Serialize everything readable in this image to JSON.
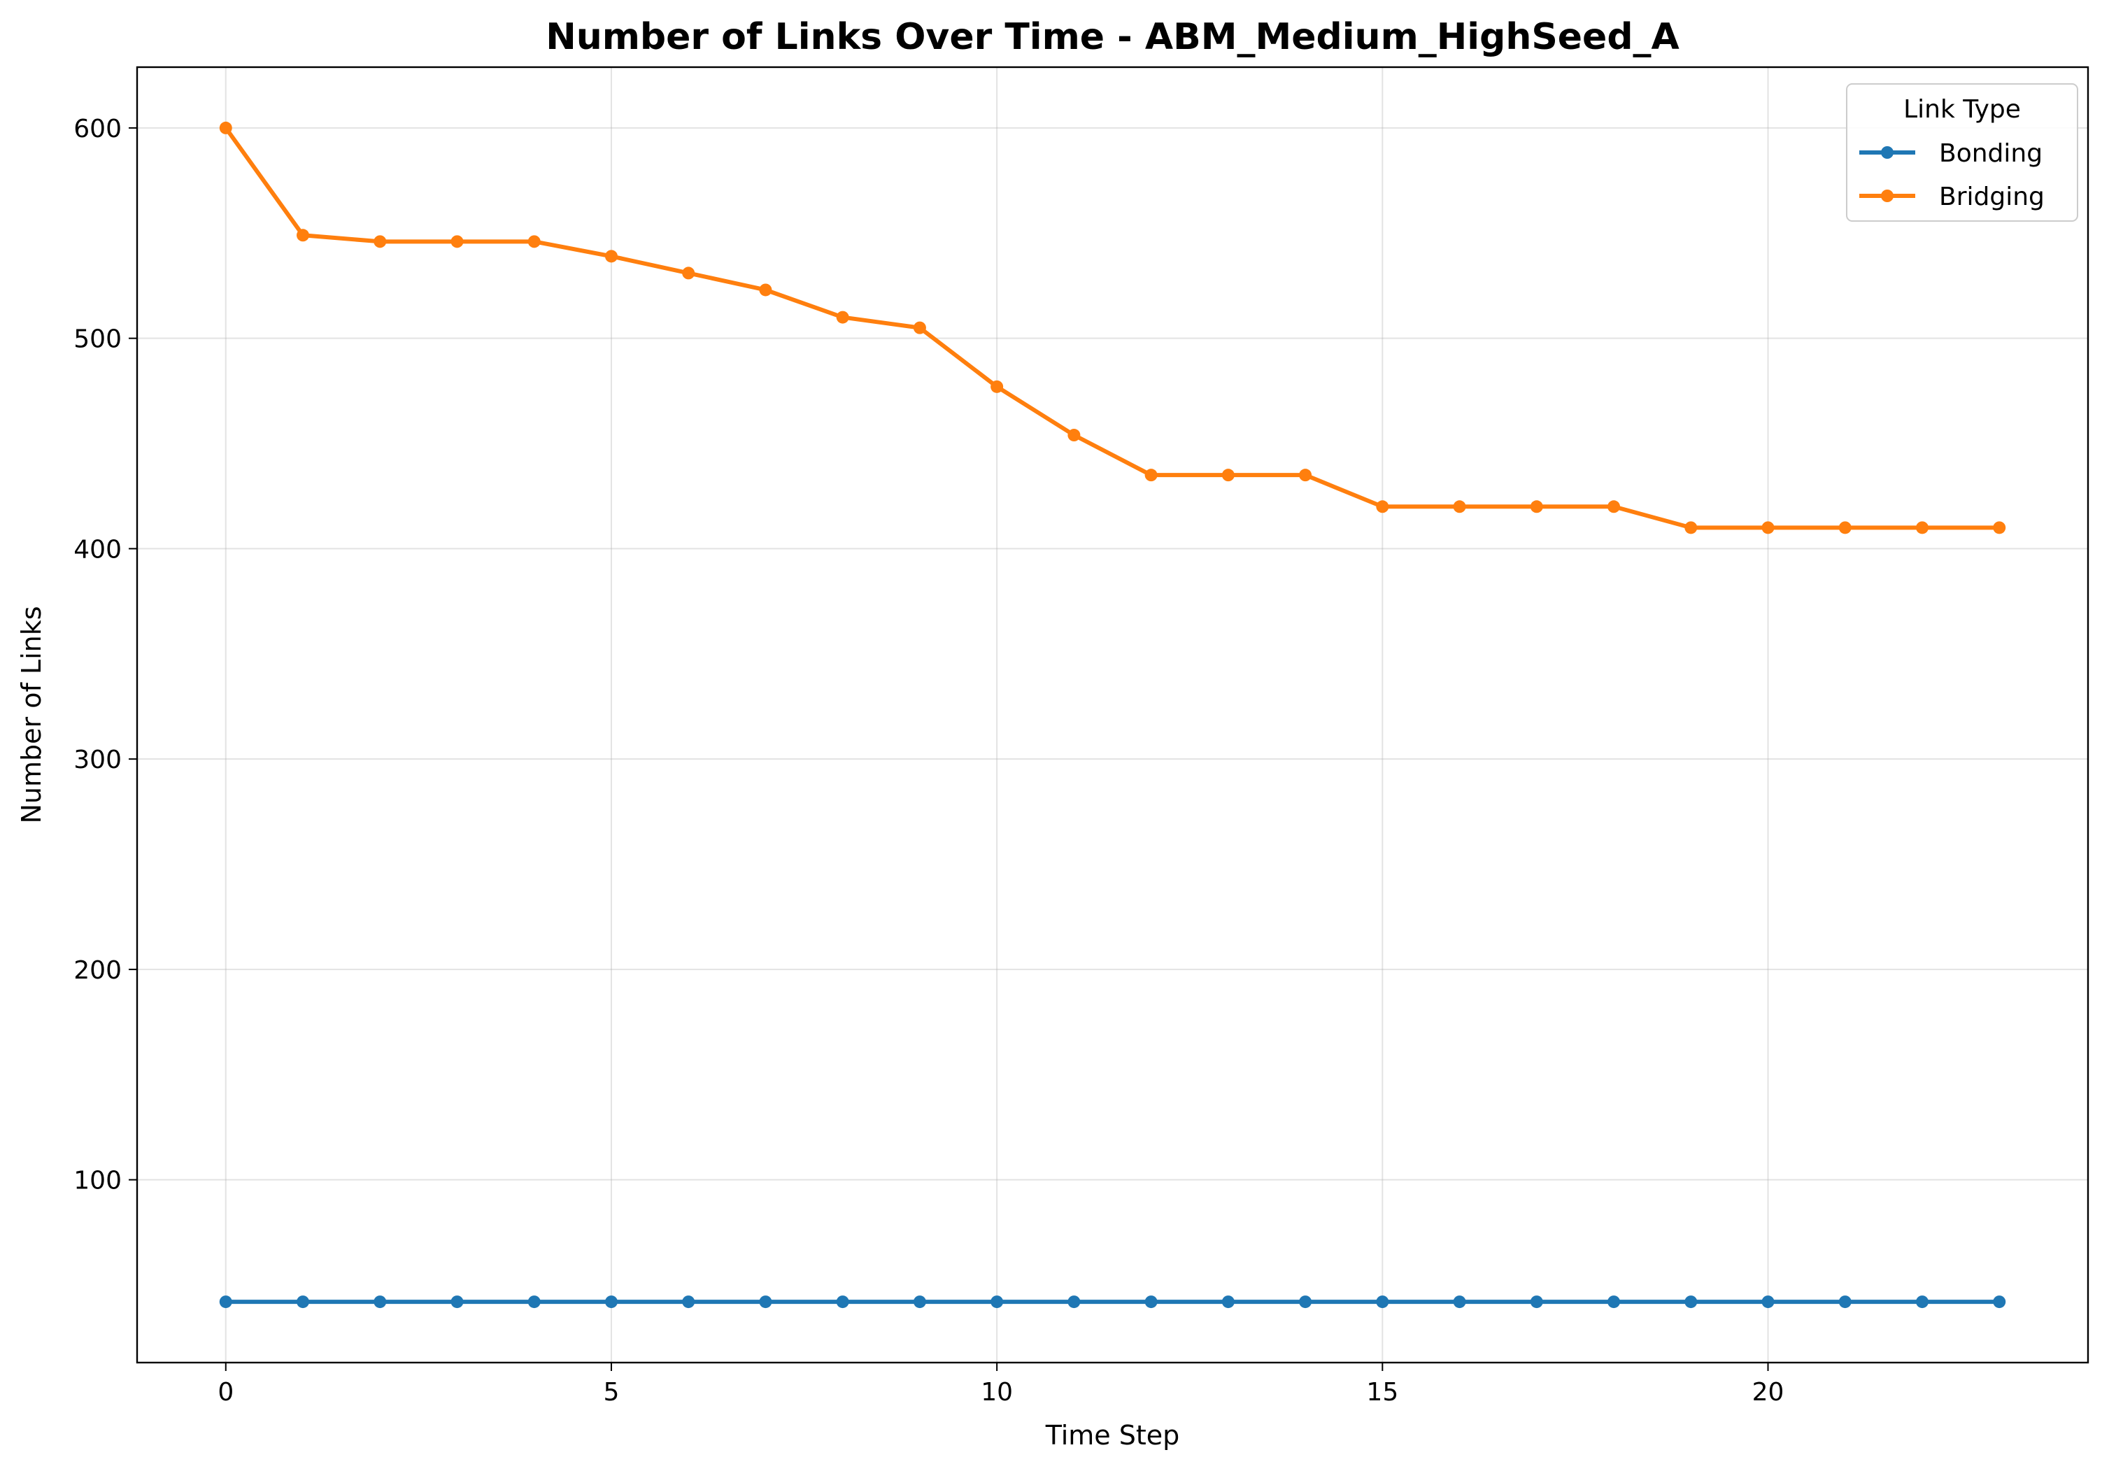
{
  "chart_data": {
    "type": "line",
    "title": "Number of Links Over Time - ABM_Medium_HighSeed_A",
    "xlabel": "Time Step",
    "ylabel": "Number of Links",
    "x": [
      0,
      1,
      2,
      3,
      4,
      5,
      6,
      7,
      8,
      9,
      10,
      11,
      12,
      13,
      14,
      15,
      16,
      17,
      18,
      19,
      20,
      21,
      22,
      23
    ],
    "xlim": [
      -1.15,
      24.15
    ],
    "ylim": [
      13.1,
      628.9
    ],
    "xticks": [
      0,
      5,
      10,
      15,
      20
    ],
    "yticks": [
      100,
      200,
      300,
      400,
      500,
      600
    ],
    "grid": true,
    "legend": {
      "title": "Link Type",
      "placement": "top-right"
    },
    "series": [
      {
        "name": "Bonding",
        "color": "#1f77b4",
        "values": [
          42,
          42,
          42,
          42,
          42,
          42,
          42,
          42,
          42,
          42,
          42,
          42,
          42,
          42,
          42,
          42,
          42,
          42,
          42,
          42,
          42,
          42,
          42,
          42
        ]
      },
      {
        "name": "Bridging",
        "color": "#ff7f0e",
        "values": [
          600,
          549,
          546,
          546,
          546,
          539,
          531,
          523,
          510,
          505,
          477,
          454,
          435,
          435,
          435,
          420,
          420,
          420,
          420,
          410,
          410,
          410,
          410,
          410
        ]
      }
    ]
  }
}
